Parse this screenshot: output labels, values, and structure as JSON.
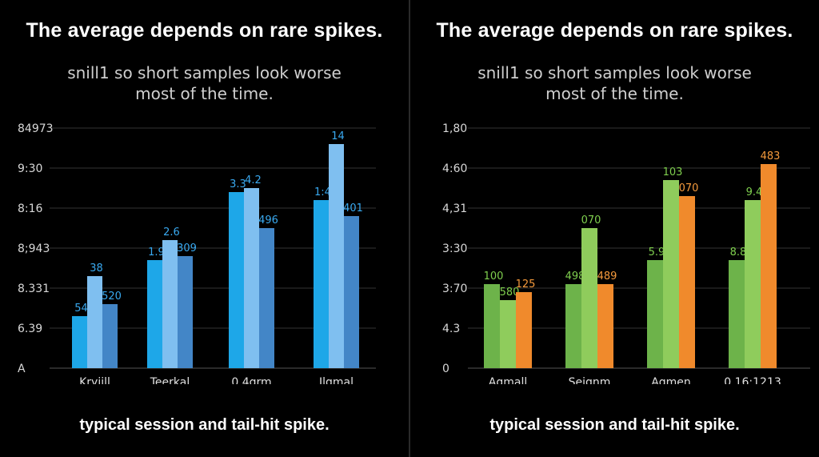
{
  "panels": [
    {
      "title": "The average depends on rare spikes.",
      "subtitle_lines": [
        "snill1 so short samples look worse",
        "most of the time."
      ],
      "caption": "typical session and tail-hit spike."
    },
    {
      "title": "The average depends on rare spikes.",
      "subtitle_lines": [
        "snill1 so short samples look worse",
        "most of the time."
      ],
      "caption": "typical session and tail-hit spike."
    }
  ],
  "chart_data": [
    {
      "type": "bar",
      "ylim": [
        0,
        6
      ],
      "y_tick_labels": [
        "A",
        "6.39",
        "8.331",
        "8;943",
        "8:16",
        "9:30",
        "84973"
      ],
      "categories": [
        "Kryjill",
        "Teerkal",
        "0.4grm",
        "Ilgmal"
      ],
      "colors": [
        "#1ea7e8",
        "#7fbff0",
        "#4386c7"
      ],
      "series": [
        {
          "values": [
            1.3,
            2.7,
            4.4,
            4.2
          ],
          "labels": [
            "54",
            "1.9",
            "3.3",
            "1:4"
          ]
        },
        {
          "values": [
            2.3,
            3.2,
            4.5,
            5.6
          ],
          "labels": [
            "38",
            "2.6",
            "4.2",
            "14"
          ]
        },
        {
          "values": [
            1.6,
            2.8,
            3.5,
            3.8
          ],
          "labels": [
            "520",
            "309",
            "496",
            "401"
          ]
        }
      ]
    },
    {
      "type": "bar",
      "ylim": [
        0,
        6
      ],
      "y_tick_labels": [
        "0",
        "4.3",
        "3:70",
        "3:30",
        "4,31",
        "4:60",
        "1,80"
      ],
      "categories": [
        "Agmall",
        "Seignm",
        "Agmen",
        "0.16:1213"
      ],
      "colors": [
        "#6db34a",
        "#8fcc5c",
        "#f08a2c"
      ],
      "series": [
        {
          "values": [
            2.1,
            2.1,
            2.7,
            2.7
          ],
          "labels": [
            "100",
            "498",
            "5.9",
            "8.8"
          ]
        },
        {
          "values": [
            1.7,
            3.5,
            4.7,
            4.2
          ],
          "labels": [
            "580",
            "070",
            "103",
            "9.4"
          ]
        },
        {
          "values": [
            1.9,
            2.1,
            4.3,
            5.1
          ],
          "labels": [
            "125",
            "489",
            "070",
            "483"
          ]
        }
      ],
      "label_colors": [
        "#7fcf4e",
        "#7fcf4e",
        "#f59a3c"
      ]
    }
  ]
}
